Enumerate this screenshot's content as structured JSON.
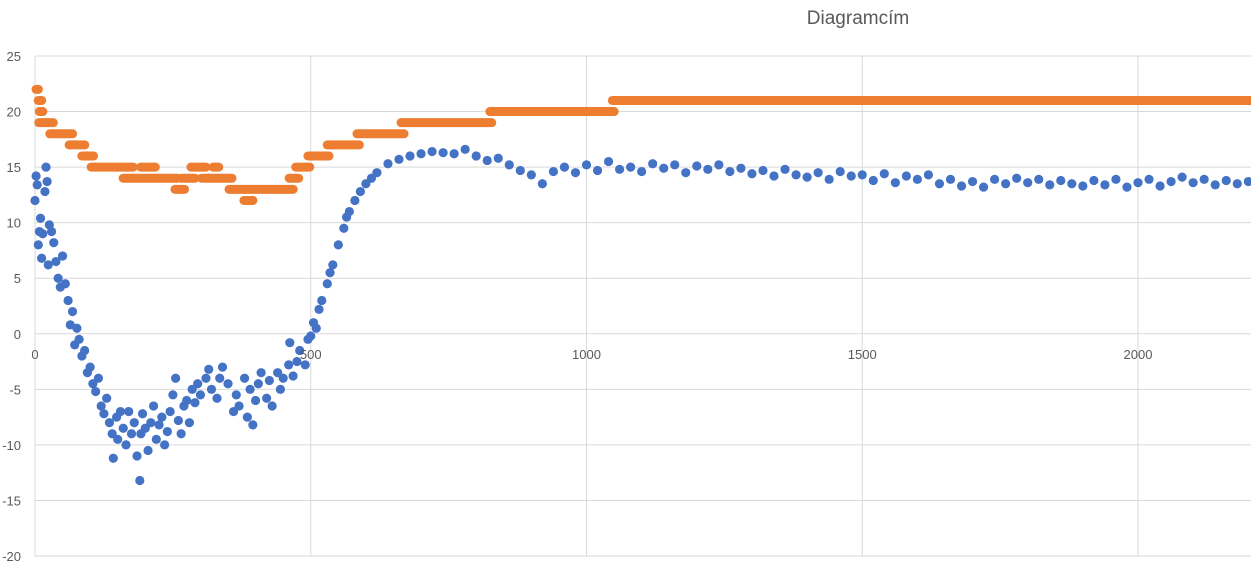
{
  "chart_data": {
    "type": "scatter",
    "title": "Diagramcím",
    "xlabel": "",
    "ylabel": "",
    "xlim": [
      0,
      2205
    ],
    "ylim": [
      -20,
      25
    ],
    "x_ticks": [
      "0",
      "500",
      "1000",
      "1500",
      "2000"
    ],
    "y_ticks": [
      "25",
      "20",
      "15",
      "10",
      "5",
      "0",
      "-5",
      "-10",
      "-15",
      "-20"
    ],
    "grid": true,
    "legend": "none",
    "colors": {
      "series1": "#4472C4",
      "series2": "#ED7D31",
      "grid": "#D9D9D9"
    },
    "series": [
      {
        "color": "#4472C4",
        "points": [
          [
            0,
            12
          ],
          [
            2,
            14.2
          ],
          [
            4,
            13.4
          ],
          [
            6,
            8
          ],
          [
            8,
            9.2
          ],
          [
            10,
            10.4
          ],
          [
            12,
            6.8
          ],
          [
            14,
            9
          ],
          [
            18,
            12.8
          ],
          [
            20,
            15
          ],
          [
            22,
            13.7
          ],
          [
            24,
            6.2
          ],
          [
            26,
            9.8
          ],
          [
            30,
            9.2
          ],
          [
            34,
            8.2
          ],
          [
            38,
            6.5
          ],
          [
            42,
            5
          ],
          [
            46,
            4.2
          ],
          [
            50,
            7
          ],
          [
            55,
            4.5
          ],
          [
            60,
            3
          ],
          [
            64,
            0.8
          ],
          [
            68,
            2
          ],
          [
            72,
            -1
          ],
          [
            76,
            0.5
          ],
          [
            80,
            -0.5
          ],
          [
            85,
            -2
          ],
          [
            90,
            -1.5
          ],
          [
            95,
            -3.5
          ],
          [
            100,
            -3
          ],
          [
            105,
            -4.5
          ],
          [
            110,
            -5.2
          ],
          [
            115,
            -4
          ],
          [
            120,
            -6.5
          ],
          [
            125,
            -7.2
          ],
          [
            130,
            -5.8
          ],
          [
            135,
            -8
          ],
          [
            140,
            -9
          ],
          [
            142,
            -11.2
          ],
          [
            148,
            -7.5
          ],
          [
            150,
            -9.5
          ],
          [
            155,
            -7
          ],
          [
            160,
            -8.5
          ],
          [
            165,
            -10
          ],
          [
            170,
            -7
          ],
          [
            175,
            -9
          ],
          [
            180,
            -8
          ],
          [
            185,
            -11
          ],
          [
            190,
            -13.2
          ],
          [
            192,
            -9
          ],
          [
            195,
            -7.2
          ],
          [
            200,
            -8.5
          ],
          [
            205,
            -10.5
          ],
          [
            210,
            -8
          ],
          [
            215,
            -6.5
          ],
          [
            220,
            -9.5
          ],
          [
            225,
            -8.2
          ],
          [
            230,
            -7.5
          ],
          [
            235,
            -10
          ],
          [
            240,
            -8.8
          ],
          [
            245,
            -7
          ],
          [
            250,
            -5.5
          ],
          [
            255,
            -4
          ],
          [
            260,
            -7.8
          ],
          [
            265,
            -9
          ],
          [
            270,
            -6.5
          ],
          [
            275,
            -6
          ],
          [
            280,
            -8
          ],
          [
            285,
            -5
          ],
          [
            290,
            -6.2
          ],
          [
            295,
            -4.5
          ],
          [
            300,
            -5.5
          ],
          [
            310,
            -4
          ],
          [
            315,
            -3.2
          ],
          [
            320,
            -5
          ],
          [
            330,
            -5.8
          ],
          [
            335,
            -4
          ],
          [
            340,
            -3
          ],
          [
            350,
            -4.5
          ],
          [
            360,
            -7
          ],
          [
            365,
            -5.5
          ],
          [
            370,
            -6.5
          ],
          [
            380,
            -4
          ],
          [
            385,
            -7.5
          ],
          [
            390,
            -5
          ],
          [
            395,
            -8.2
          ],
          [
            400,
            -6
          ],
          [
            405,
            -4.5
          ],
          [
            410,
            -3.5
          ],
          [
            420,
            -5.8
          ],
          [
            425,
            -4.2
          ],
          [
            430,
            -6.5
          ],
          [
            440,
            -3.5
          ],
          [
            445,
            -5
          ],
          [
            450,
            -4
          ],
          [
            460,
            -2.8
          ],
          [
            462,
            -0.8
          ],
          [
            468,
            -3.8
          ],
          [
            475,
            -2.5
          ],
          [
            480,
            -1.5
          ],
          [
            490,
            -2.8
          ],
          [
            495,
            -0.5
          ],
          [
            500,
            -0.2
          ],
          [
            505,
            1
          ],
          [
            510,
            0.5
          ],
          [
            515,
            2.2
          ],
          [
            520,
            3
          ],
          [
            530,
            4.5
          ],
          [
            535,
            5.5
          ],
          [
            540,
            6.2
          ],
          [
            550,
            8
          ],
          [
            560,
            9.5
          ],
          [
            565,
            10.5
          ],
          [
            570,
            11
          ],
          [
            580,
            12
          ],
          [
            590,
            12.8
          ],
          [
            600,
            13.5
          ],
          [
            610,
            14
          ],
          [
            620,
            14.5
          ],
          [
            640,
            15.3
          ],
          [
            660,
            15.7
          ],
          [
            680,
            16
          ],
          [
            700,
            16.2
          ],
          [
            720,
            16.4
          ],
          [
            740,
            16.3
          ],
          [
            760,
            16.2
          ],
          [
            780,
            16.6
          ],
          [
            800,
            16
          ],
          [
            820,
            15.6
          ],
          [
            840,
            15.8
          ],
          [
            860,
            15.2
          ],
          [
            880,
            14.7
          ],
          [
            900,
            14.3
          ],
          [
            920,
            13.5
          ],
          [
            940,
            14.6
          ],
          [
            960,
            15
          ],
          [
            980,
            14.5
          ],
          [
            1000,
            15.2
          ],
          [
            1020,
            14.7
          ],
          [
            1040,
            15.5
          ],
          [
            1060,
            14.8
          ],
          [
            1080,
            15
          ],
          [
            1100,
            14.6
          ],
          [
            1120,
            15.3
          ],
          [
            1140,
            14.9
          ],
          [
            1160,
            15.2
          ],
          [
            1180,
            14.5
          ],
          [
            1200,
            15.1
          ],
          [
            1220,
            14.8
          ],
          [
            1240,
            15.2
          ],
          [
            1260,
            14.6
          ],
          [
            1280,
            14.9
          ],
          [
            1300,
            14.4
          ],
          [
            1320,
            14.7
          ],
          [
            1340,
            14.2
          ],
          [
            1360,
            14.8
          ],
          [
            1380,
            14.3
          ],
          [
            1400,
            14.1
          ],
          [
            1420,
            14.5
          ],
          [
            1440,
            13.9
          ],
          [
            1460,
            14.6
          ],
          [
            1480,
            14.2
          ],
          [
            1500,
            14.3
          ],
          [
            1520,
            13.8
          ],
          [
            1540,
            14.4
          ],
          [
            1560,
            13.6
          ],
          [
            1580,
            14.2
          ],
          [
            1600,
            13.9
          ],
          [
            1620,
            14.3
          ],
          [
            1640,
            13.5
          ],
          [
            1660,
            13.9
          ],
          [
            1680,
            13.3
          ],
          [
            1700,
            13.7
          ],
          [
            1720,
            13.2
          ],
          [
            1740,
            13.9
          ],
          [
            1760,
            13.5
          ],
          [
            1780,
            14
          ],
          [
            1800,
            13.6
          ],
          [
            1820,
            13.9
          ],
          [
            1840,
            13.4
          ],
          [
            1860,
            13.8
          ],
          [
            1880,
            13.5
          ],
          [
            1900,
            13.3
          ],
          [
            1920,
            13.8
          ],
          [
            1940,
            13.4
          ],
          [
            1960,
            13.9
          ],
          [
            1980,
            13.2
          ],
          [
            2000,
            13.6
          ],
          [
            2020,
            13.9
          ],
          [
            2040,
            13.3
          ],
          [
            2060,
            13.7
          ],
          [
            2080,
            14.1
          ],
          [
            2100,
            13.6
          ],
          [
            2120,
            13.9
          ],
          [
            2140,
            13.4
          ],
          [
            2160,
            13.8
          ],
          [
            2180,
            13.5
          ],
          [
            2200,
            13.7
          ]
        ]
      },
      {
        "color": "#ED7D31",
        "runs_x_start_x_end_y": [
          [
            0,
            8,
            22
          ],
          [
            4,
            14,
            21
          ],
          [
            6,
            16,
            20
          ],
          [
            5,
            35,
            19
          ],
          [
            25,
            70,
            18
          ],
          [
            60,
            92,
            17
          ],
          [
            83,
            108,
            16
          ],
          [
            100,
            180,
            15
          ],
          [
            158,
            260,
            14
          ],
          [
            190,
            220,
            15
          ],
          [
            252,
            273,
            13
          ],
          [
            263,
            292,
            14
          ],
          [
            281,
            312,
            15
          ],
          [
            300,
            359,
            14
          ],
          [
            321,
            335,
            15
          ],
          [
            350,
            470,
            13
          ],
          [
            377,
            397,
            12
          ],
          [
            459,
            480,
            14
          ],
          [
            471,
            500,
            15
          ],
          [
            493,
            535,
            16
          ],
          [
            528,
            590,
            17
          ],
          [
            582,
            671,
            18
          ],
          [
            662,
            830,
            19
          ],
          [
            823,
            1052,
            20
          ],
          [
            1045,
            2205,
            21
          ]
        ]
      }
    ]
  }
}
